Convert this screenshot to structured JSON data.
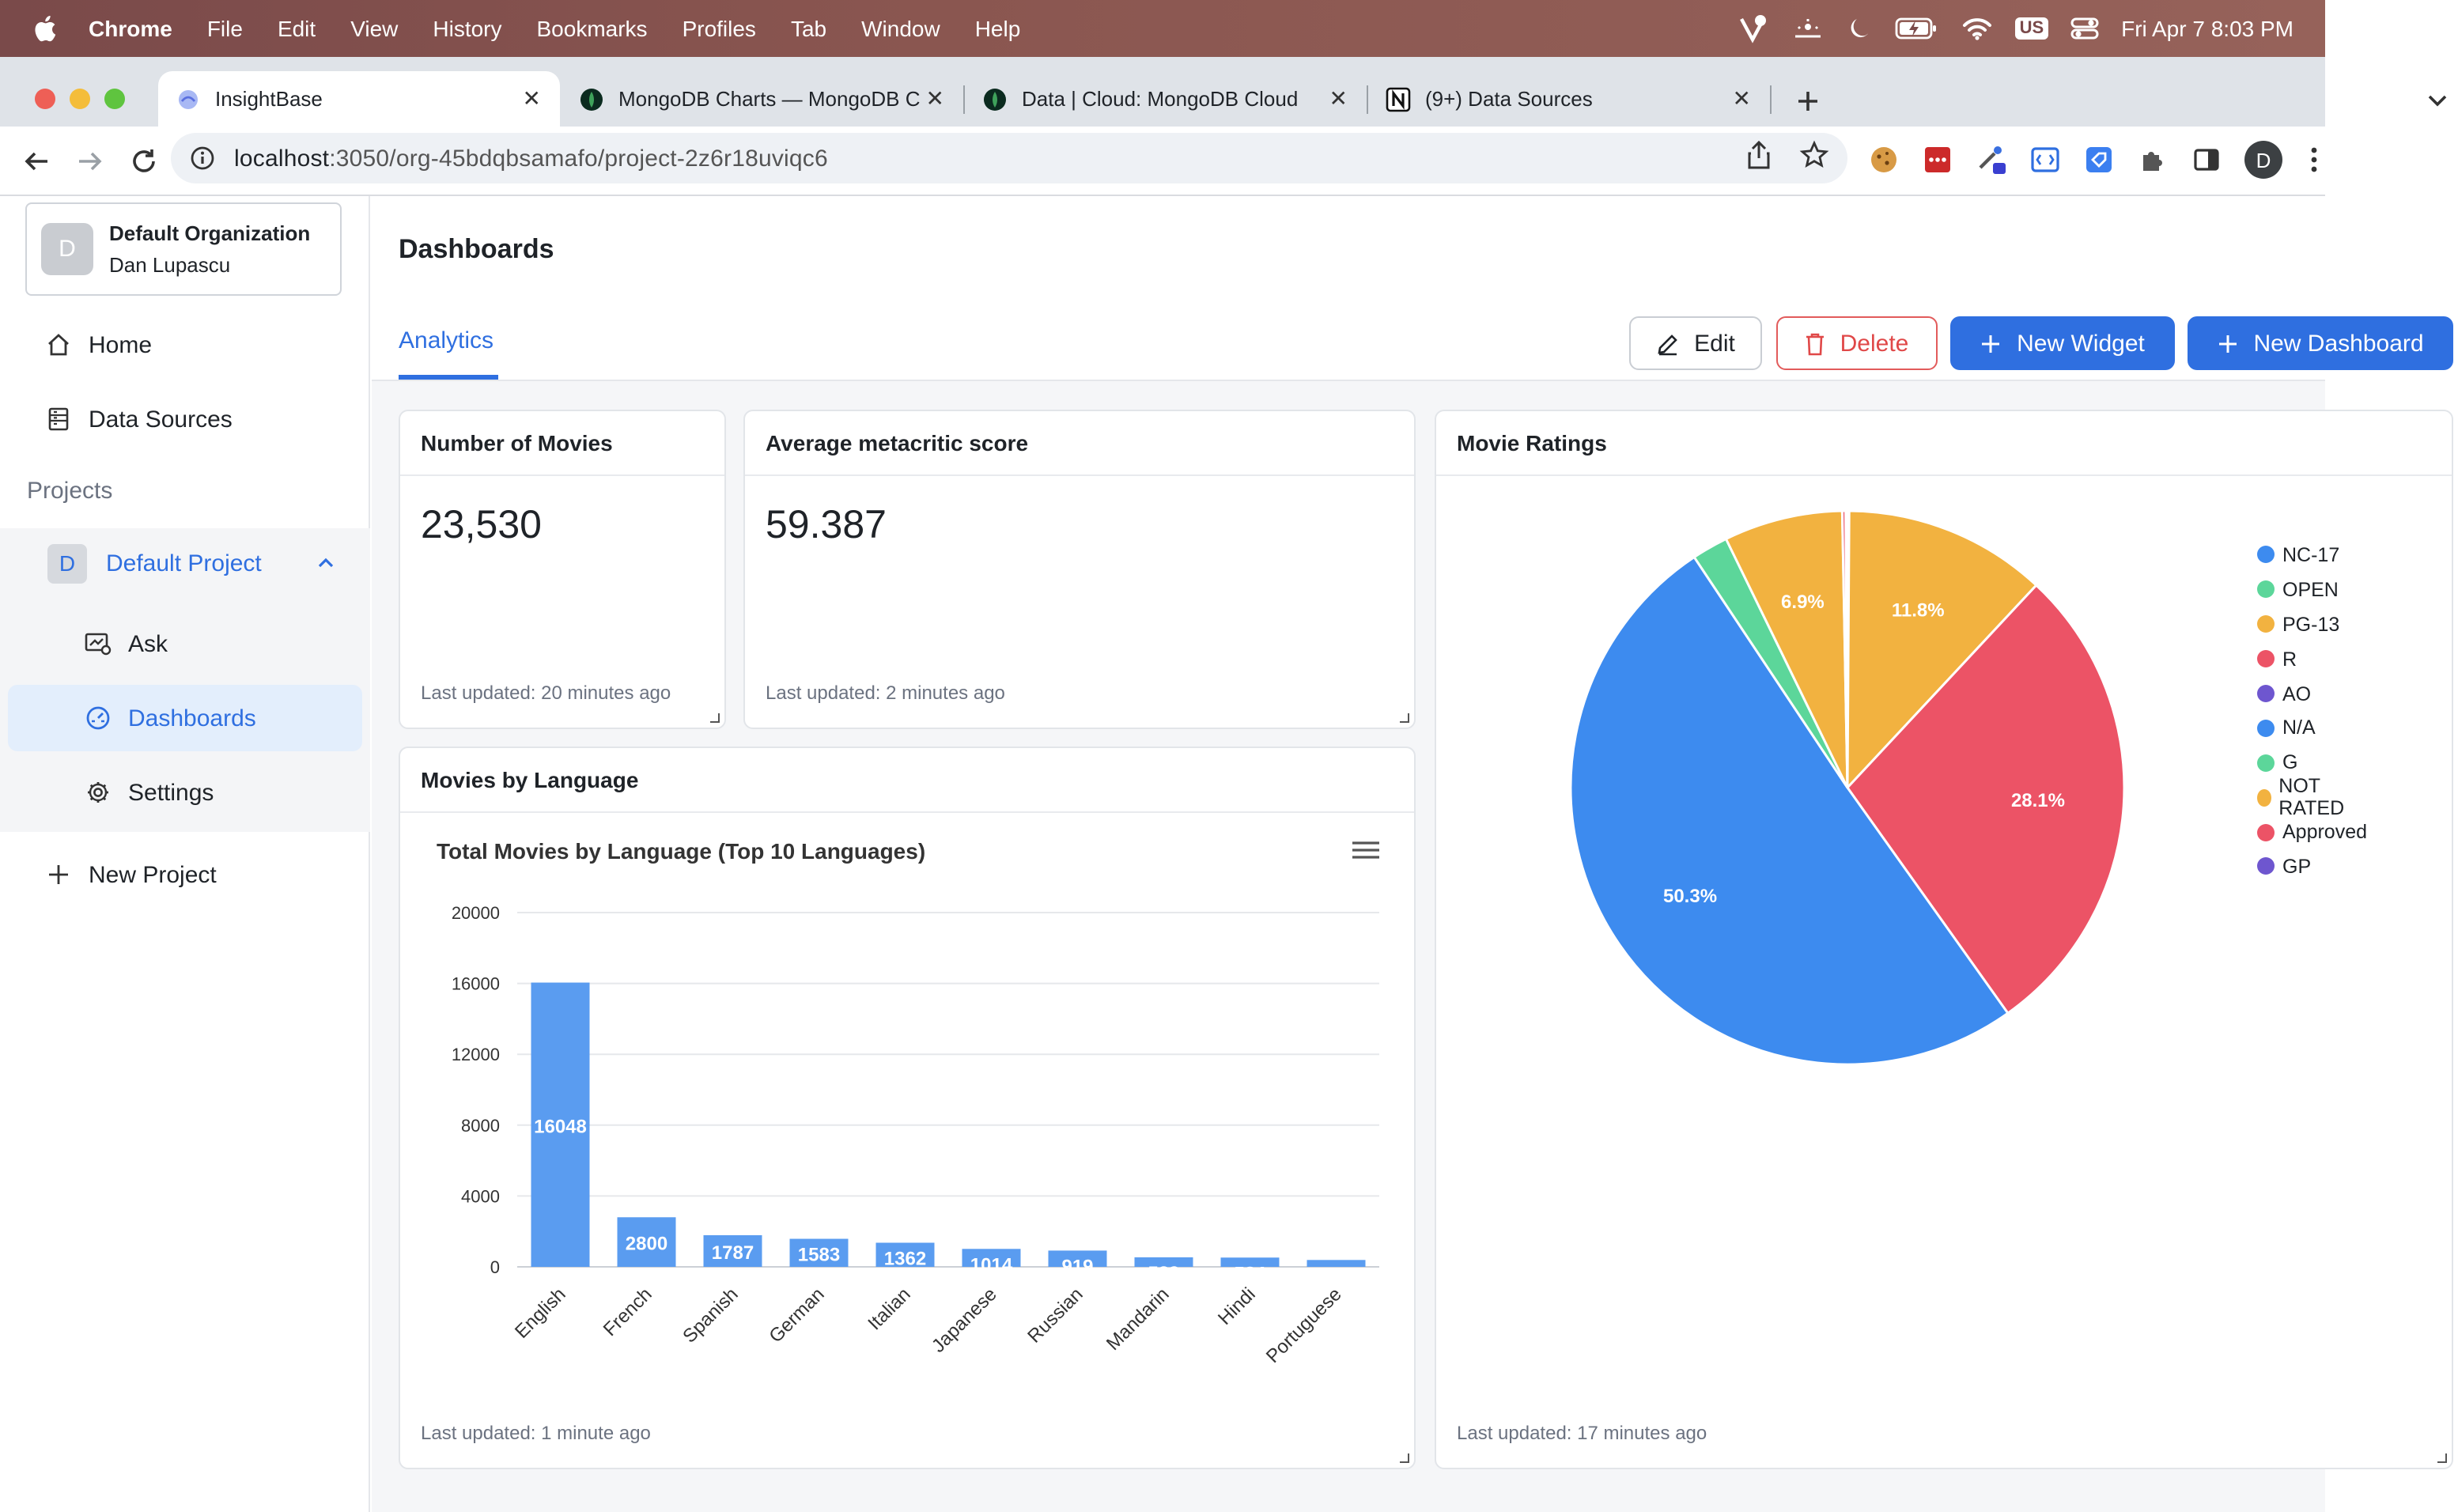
{
  "menubar": {
    "app": "Chrome",
    "items": [
      "File",
      "Edit",
      "View",
      "History",
      "Bookmarks",
      "Profiles",
      "Tab",
      "Window",
      "Help"
    ],
    "input_source": "US",
    "datetime": "Fri Apr 7  8:03 PM"
  },
  "tabs": [
    {
      "title": "InsightBase",
      "icon": "insightbase-icon"
    },
    {
      "title": "MongoDB Charts — MongoDB C",
      "icon": "mongodb-leaf-icon"
    },
    {
      "title": "Data | Cloud: MongoDB Cloud",
      "icon": "mongodb-leaf-icon"
    },
    {
      "title": "(9+) Data Sources",
      "icon": "notion-icon"
    }
  ],
  "address": {
    "url_host": "localhost",
    "url_rest": ":3050/org-45bdqbsamafo/project-2z6r18uviqc6"
  },
  "profile_initial": "D",
  "sidebar": {
    "org": {
      "initial": "D",
      "name": "Default Organization",
      "user": "Dan Lupascu"
    },
    "nav": [
      {
        "label": "Home",
        "icon": "home-icon"
      },
      {
        "label": "Data Sources",
        "icon": "database-icon"
      }
    ],
    "projects_heading": "Projects",
    "project": {
      "initial": "D",
      "name": "Default Project"
    },
    "project_items": [
      {
        "label": "Ask",
        "icon": "ask-icon"
      },
      {
        "label": "Dashboards",
        "icon": "dashboard-icon"
      },
      {
        "label": "Settings",
        "icon": "gear-icon"
      }
    ],
    "new_project": "New Project"
  },
  "main": {
    "title": "Dashboards",
    "tab": "Analytics",
    "buttons": {
      "edit": "Edit",
      "delete": "Delete",
      "new_widget": "New Widget",
      "new_dashboard": "New Dashboard"
    }
  },
  "widgets": {
    "movies": {
      "title": "Number of Movies",
      "value": "23,530",
      "updated": "Last updated: 20 minutes ago"
    },
    "metacritic": {
      "title": "Average metacritic score",
      "value": "59.387",
      "updated": "Last updated: 2 minutes ago"
    },
    "language": {
      "title": "Movies by Language",
      "updated": "Last updated: 1 minute ago"
    },
    "ratings": {
      "title": "Movie Ratings",
      "updated": "Last updated: 17 minutes ago"
    }
  },
  "colors": {
    "accent": "#2f6fe0",
    "danger": "#e04848"
  },
  "chart_data": [
    {
      "type": "bar",
      "title": "Total Movies by Language (Top 10 Languages)",
      "categories": [
        "English",
        "French",
        "Spanish",
        "German",
        "Italian",
        "Japanese",
        "Russian",
        "Mandarin",
        "Hindi",
        "Portuguese"
      ],
      "values": [
        16048,
        2800,
        1787,
        1583,
        1362,
        1014,
        919,
        539,
        524,
        388
      ],
      "yticks": [
        "20000",
        "16000",
        "12000",
        "8000",
        "4000",
        "0"
      ],
      "ylim": [
        0,
        20000
      ],
      "grid": true,
      "color": "#5a9cf0"
    },
    {
      "type": "pie",
      "title": "",
      "labels": [
        "NC-17",
        "OPEN",
        "PG-13",
        "R",
        "AO",
        "N/A",
        "G",
        "NOT RATED",
        "Approved",
        "GP"
      ],
      "values": [
        0.1,
        0.0,
        11.8,
        28.1,
        0.0,
        50.3,
        2.1,
        6.9,
        0.2,
        0.1
      ],
      "slice_labels": [
        "",
        "",
        "11.8%",
        "28.1%",
        "",
        "50.3%",
        "",
        "6.9%",
        "",
        ""
      ],
      "colors": [
        "#3d8bef",
        "#5cd69a",
        "#f2b240",
        "#ec5366",
        "#6e56cf",
        "#3d8bef",
        "#5cd69a",
        "#f2b240",
        "#ec5366",
        "#6e56cf"
      ],
      "legend": "right"
    }
  ]
}
